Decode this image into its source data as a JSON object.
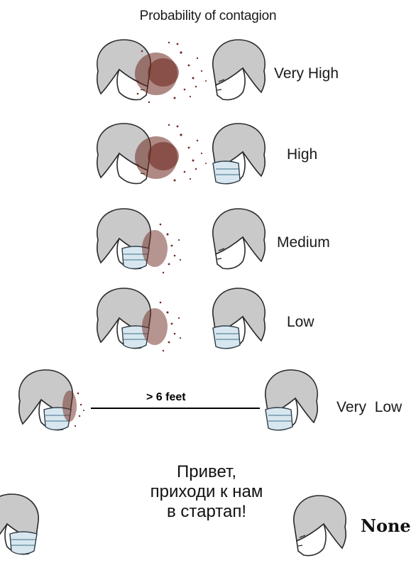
{
  "title": "Probability of contagion",
  "rows": [
    {
      "level": "Very High",
      "spreader_mask": false,
      "receiver_mask": false,
      "spray": "heavy"
    },
    {
      "level": "High",
      "spreader_mask": false,
      "receiver_mask": true,
      "spray": "heavy"
    },
    {
      "level": "Medium",
      "spreader_mask": true,
      "receiver_mask": false,
      "spray": "medium"
    },
    {
      "level": "Low",
      "spreader_mask": true,
      "receiver_mask": true,
      "spray": "medium"
    },
    {
      "level": "Very  Low",
      "spreader_mask": true,
      "receiver_mask": true,
      "spray": "light"
    }
  ],
  "distance_label": "> 6 feet",
  "message": {
    "line1": "Привет,",
    "line2": "приходи к нам",
    "line3": "в стартап!"
  },
  "last_level": "None",
  "colors": {
    "spray": "#6e2a20",
    "mask": "#d8e7ef",
    "hair": "#c9c9c9"
  }
}
